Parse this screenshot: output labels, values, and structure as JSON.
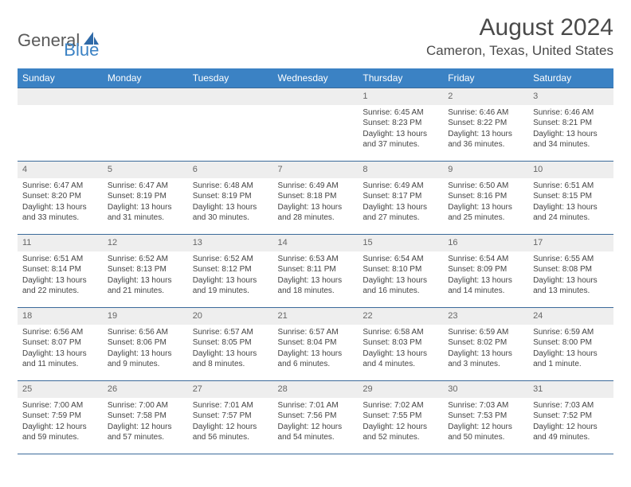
{
  "logo": {
    "part1": "General",
    "part2": "Blue"
  },
  "title": "August 2024",
  "location": "Cameron, Texas, United States",
  "day_headers": [
    "Sunday",
    "Monday",
    "Tuesday",
    "Wednesday",
    "Thursday",
    "Friday",
    "Saturday"
  ],
  "colors": {
    "header_bg": "#3b82c4",
    "header_text": "#ffffff",
    "daynum_bg": "#eeeeee",
    "border": "#3b6a9a"
  },
  "weeks": [
    [
      {
        "n": "",
        "sunrise": "",
        "sunset": "",
        "daylight": ""
      },
      {
        "n": "",
        "sunrise": "",
        "sunset": "",
        "daylight": ""
      },
      {
        "n": "",
        "sunrise": "",
        "sunset": "",
        "daylight": ""
      },
      {
        "n": "",
        "sunrise": "",
        "sunset": "",
        "daylight": ""
      },
      {
        "n": "1",
        "sunrise": "Sunrise: 6:45 AM",
        "sunset": "Sunset: 8:23 PM",
        "daylight": "Daylight: 13 hours and 37 minutes."
      },
      {
        "n": "2",
        "sunrise": "Sunrise: 6:46 AM",
        "sunset": "Sunset: 8:22 PM",
        "daylight": "Daylight: 13 hours and 36 minutes."
      },
      {
        "n": "3",
        "sunrise": "Sunrise: 6:46 AM",
        "sunset": "Sunset: 8:21 PM",
        "daylight": "Daylight: 13 hours and 34 minutes."
      }
    ],
    [
      {
        "n": "4",
        "sunrise": "Sunrise: 6:47 AM",
        "sunset": "Sunset: 8:20 PM",
        "daylight": "Daylight: 13 hours and 33 minutes."
      },
      {
        "n": "5",
        "sunrise": "Sunrise: 6:47 AM",
        "sunset": "Sunset: 8:19 PM",
        "daylight": "Daylight: 13 hours and 31 minutes."
      },
      {
        "n": "6",
        "sunrise": "Sunrise: 6:48 AM",
        "sunset": "Sunset: 8:19 PM",
        "daylight": "Daylight: 13 hours and 30 minutes."
      },
      {
        "n": "7",
        "sunrise": "Sunrise: 6:49 AM",
        "sunset": "Sunset: 8:18 PM",
        "daylight": "Daylight: 13 hours and 28 minutes."
      },
      {
        "n": "8",
        "sunrise": "Sunrise: 6:49 AM",
        "sunset": "Sunset: 8:17 PM",
        "daylight": "Daylight: 13 hours and 27 minutes."
      },
      {
        "n": "9",
        "sunrise": "Sunrise: 6:50 AM",
        "sunset": "Sunset: 8:16 PM",
        "daylight": "Daylight: 13 hours and 25 minutes."
      },
      {
        "n": "10",
        "sunrise": "Sunrise: 6:51 AM",
        "sunset": "Sunset: 8:15 PM",
        "daylight": "Daylight: 13 hours and 24 minutes."
      }
    ],
    [
      {
        "n": "11",
        "sunrise": "Sunrise: 6:51 AM",
        "sunset": "Sunset: 8:14 PM",
        "daylight": "Daylight: 13 hours and 22 minutes."
      },
      {
        "n": "12",
        "sunrise": "Sunrise: 6:52 AM",
        "sunset": "Sunset: 8:13 PM",
        "daylight": "Daylight: 13 hours and 21 minutes."
      },
      {
        "n": "13",
        "sunrise": "Sunrise: 6:52 AM",
        "sunset": "Sunset: 8:12 PM",
        "daylight": "Daylight: 13 hours and 19 minutes."
      },
      {
        "n": "14",
        "sunrise": "Sunrise: 6:53 AM",
        "sunset": "Sunset: 8:11 PM",
        "daylight": "Daylight: 13 hours and 18 minutes."
      },
      {
        "n": "15",
        "sunrise": "Sunrise: 6:54 AM",
        "sunset": "Sunset: 8:10 PM",
        "daylight": "Daylight: 13 hours and 16 minutes."
      },
      {
        "n": "16",
        "sunrise": "Sunrise: 6:54 AM",
        "sunset": "Sunset: 8:09 PM",
        "daylight": "Daylight: 13 hours and 14 minutes."
      },
      {
        "n": "17",
        "sunrise": "Sunrise: 6:55 AM",
        "sunset": "Sunset: 8:08 PM",
        "daylight": "Daylight: 13 hours and 13 minutes."
      }
    ],
    [
      {
        "n": "18",
        "sunrise": "Sunrise: 6:56 AM",
        "sunset": "Sunset: 8:07 PM",
        "daylight": "Daylight: 13 hours and 11 minutes."
      },
      {
        "n": "19",
        "sunrise": "Sunrise: 6:56 AM",
        "sunset": "Sunset: 8:06 PM",
        "daylight": "Daylight: 13 hours and 9 minutes."
      },
      {
        "n": "20",
        "sunrise": "Sunrise: 6:57 AM",
        "sunset": "Sunset: 8:05 PM",
        "daylight": "Daylight: 13 hours and 8 minutes."
      },
      {
        "n": "21",
        "sunrise": "Sunrise: 6:57 AM",
        "sunset": "Sunset: 8:04 PM",
        "daylight": "Daylight: 13 hours and 6 minutes."
      },
      {
        "n": "22",
        "sunrise": "Sunrise: 6:58 AM",
        "sunset": "Sunset: 8:03 PM",
        "daylight": "Daylight: 13 hours and 4 minutes."
      },
      {
        "n": "23",
        "sunrise": "Sunrise: 6:59 AM",
        "sunset": "Sunset: 8:02 PM",
        "daylight": "Daylight: 13 hours and 3 minutes."
      },
      {
        "n": "24",
        "sunrise": "Sunrise: 6:59 AM",
        "sunset": "Sunset: 8:00 PM",
        "daylight": "Daylight: 13 hours and 1 minute."
      }
    ],
    [
      {
        "n": "25",
        "sunrise": "Sunrise: 7:00 AM",
        "sunset": "Sunset: 7:59 PM",
        "daylight": "Daylight: 12 hours and 59 minutes."
      },
      {
        "n": "26",
        "sunrise": "Sunrise: 7:00 AM",
        "sunset": "Sunset: 7:58 PM",
        "daylight": "Daylight: 12 hours and 57 minutes."
      },
      {
        "n": "27",
        "sunrise": "Sunrise: 7:01 AM",
        "sunset": "Sunset: 7:57 PM",
        "daylight": "Daylight: 12 hours and 56 minutes."
      },
      {
        "n": "28",
        "sunrise": "Sunrise: 7:01 AM",
        "sunset": "Sunset: 7:56 PM",
        "daylight": "Daylight: 12 hours and 54 minutes."
      },
      {
        "n": "29",
        "sunrise": "Sunrise: 7:02 AM",
        "sunset": "Sunset: 7:55 PM",
        "daylight": "Daylight: 12 hours and 52 minutes."
      },
      {
        "n": "30",
        "sunrise": "Sunrise: 7:03 AM",
        "sunset": "Sunset: 7:53 PM",
        "daylight": "Daylight: 12 hours and 50 minutes."
      },
      {
        "n": "31",
        "sunrise": "Sunrise: 7:03 AM",
        "sunset": "Sunset: 7:52 PM",
        "daylight": "Daylight: 12 hours and 49 minutes."
      }
    ]
  ]
}
